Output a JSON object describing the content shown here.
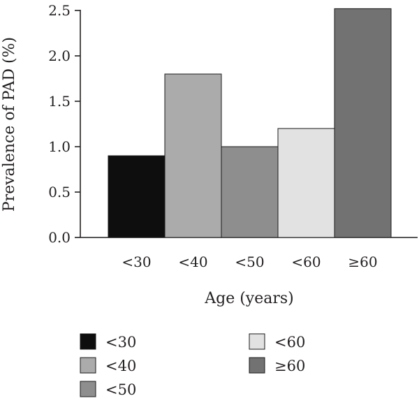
{
  "chart_data": {
    "type": "bar",
    "title": "",
    "xlabel": "Age (years)",
    "ylabel": "Prevalence of PAD (%)",
    "ylim": [
      0,
      2.5
    ],
    "yticks": [
      "0.0",
      "0.5",
      "1.0",
      "1.5",
      "2.0",
      "2.5"
    ],
    "categories": [
      "<30",
      "<40",
      "<50",
      "<60",
      "≥60"
    ],
    "values": [
      0.9,
      1.8,
      1.0,
      1.2,
      2.52
    ],
    "colors": [
      "#0e0e0e",
      "#ababab",
      "#8e8e8e",
      "#e2e2e2",
      "#727272"
    ],
    "grid": false,
    "legend": {
      "placement": "bottom",
      "entries": [
        "<30",
        "<40",
        "<50",
        "<60",
        "≥60"
      ]
    }
  }
}
